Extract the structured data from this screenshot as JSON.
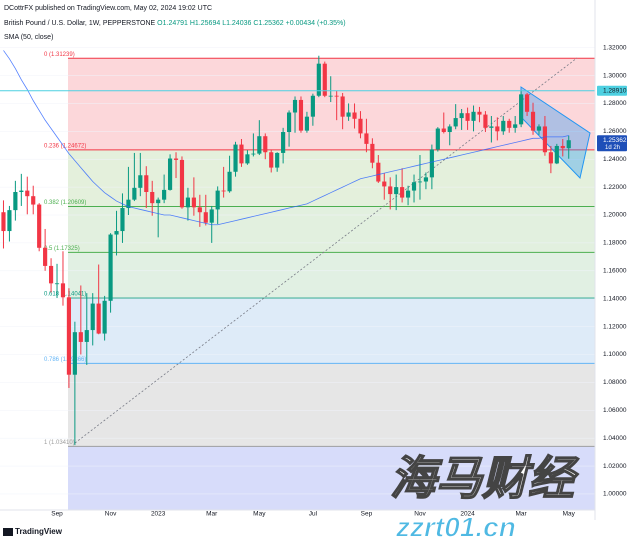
{
  "header": {
    "publisher": "DCottrFX published on TradingView.com, May 02, 2024 19:02 UTC",
    "symbol": "British Pound / U.S. Dollar, 1W, PEPPERSTONE",
    "open": "O1.24791",
    "high": "H1.25694",
    "low": "L1.24036",
    "close": "C1.25362",
    "change": "+0.00434 (+0.35%)",
    "indicator": "SMA (50, close)"
  },
  "chart_data": {
    "type": "candlestick",
    "categories": [
      null,
      null,
      null,
      null,
      null,
      null,
      null,
      null,
      null,
      "Sep",
      null,
      null,
      null,
      null,
      null,
      null,
      null,
      null,
      "Nov",
      null,
      null,
      null,
      null,
      null,
      null,
      null,
      "2023",
      null,
      null,
      null,
      null,
      null,
      null,
      null,
      null,
      "Mar",
      null,
      null,
      null,
      null,
      null,
      null,
      null,
      "May",
      null,
      null,
      null,
      null,
      null,
      null,
      null,
      null,
      "Jul",
      null,
      null,
      null,
      null,
      null,
      null,
      null,
      null,
      "Sep",
      null,
      null,
      null,
      null,
      null,
      null,
      null,
      null,
      "Nov",
      null,
      null,
      null,
      null,
      null,
      null,
      null,
      "2024",
      null,
      null,
      null,
      null,
      null,
      null,
      null,
      null,
      "Mar",
      null,
      null,
      null,
      null,
      null,
      null,
      null,
      "May"
    ],
    "open": [
      1.202,
      1.1885,
      1.2035,
      1.2165,
      1.2175,
      1.2135,
      1.2075,
      1.1765,
      1.1635,
      1.151,
      1.151,
      1.141,
      1.0855,
      1.116,
      1.109,
      1.1175,
      1.1365,
      1.115,
      1.1385,
      1.186,
      1.1885,
      1.205,
      1.211,
      1.2195,
      1.2285,
      1.2165,
      1.2085,
      1.211,
      1.218,
      1.2405,
      1.2395,
      1.2055,
      1.2125,
      1.2055,
      1.202,
      1.1945,
      1.204,
      1.2175,
      1.217,
      1.231,
      1.2505,
      1.237,
      1.2435,
      1.244,
      1.2565,
      1.245,
      1.234,
      1.2445,
      1.2595,
      1.2735,
      1.2825,
      1.2605,
      1.2705,
      1.2855,
      1.3085,
      1.2855,
      1.2855,
      1.285,
      1.2705,
      1.2735,
      1.269,
      1.2585,
      1.251,
      1.2375,
      1.224,
      1.2205,
      1.215,
      1.22,
      1.2125,
      1.2175,
      1.2235,
      1.224,
      1.227,
      1.247,
      1.262,
      1.2595,
      1.2635,
      1.2695,
      1.273,
      1.2675,
      1.274,
      1.272,
      1.2625,
      1.2635,
      1.26,
      1.2675,
      1.2625,
      1.265,
      1.2865,
      1.274,
      1.2605,
      1.2635,
      1.245,
      1.237,
      1.2495,
      1.24791
    ],
    "high": [
      1.2105,
      1.2065,
      1.2245,
      1.2295,
      1.2275,
      1.221,
      1.2085,
      1.19,
      1.169,
      1.165,
      1.174,
      1.1475,
      1.1235,
      1.1495,
      1.144,
      1.144,
      1.1645,
      1.142,
      1.187,
      1.203,
      1.2155,
      1.2345,
      1.2445,
      1.2445,
      1.235,
      1.2245,
      1.2125,
      1.229,
      1.2435,
      1.245,
      1.242,
      1.2195,
      1.227,
      1.2145,
      1.2145,
      1.2065,
      1.2205,
      1.2345,
      1.2425,
      1.2525,
      1.2545,
      1.2465,
      1.2585,
      1.268,
      1.2585,
      1.247,
      1.245,
      1.2625,
      1.275,
      1.285,
      1.285,
      1.274,
      1.287,
      1.3142,
      1.31,
      1.2995,
      1.289,
      1.2875,
      1.28,
      1.28,
      1.2745,
      1.269,
      1.255,
      1.243,
      1.23,
      1.227,
      1.229,
      1.2335,
      1.221,
      1.229,
      1.243,
      1.2305,
      1.2505,
      1.263,
      1.2735,
      1.265,
      1.2795,
      1.276,
      1.277,
      1.2785,
      1.2775,
      1.2745,
      1.271,
      1.27,
      1.271,
      1.269,
      1.271,
      1.2895,
      1.2875,
      1.2805,
      1.265,
      1.271,
      1.2495,
      1.251,
      1.2545,
      1.25694
    ],
    "low": [
      1.176,
      1.181,
      1.196,
      1.2065,
      1.2005,
      1.2005,
      1.174,
      1.16,
      1.1445,
      1.1405,
      1.135,
      1.076,
      1.035,
      1.1,
      1.0925,
      1.1065,
      1.1145,
      1.11,
      1.13,
      1.171,
      1.18,
      1.2,
      1.21,
      1.2135,
      1.205,
      1.1995,
      1.184,
      1.2085,
      1.2175,
      1.2265,
      1.2045,
      1.196,
      1.1995,
      1.1915,
      1.1925,
      1.18,
      1.1935,
      1.2125,
      1.216,
      1.2275,
      1.2345,
      1.236,
      1.242,
      1.243,
      1.24,
      1.2305,
      1.231,
      1.237,
      1.249,
      1.259,
      1.259,
      1.259,
      1.264,
      1.2845,
      1.2845,
      1.281,
      1.268,
      1.2615,
      1.2675,
      1.262,
      1.255,
      1.245,
      1.2335,
      1.223,
      1.211,
      1.204,
      1.2035,
      1.209,
      1.207,
      1.209,
      1.211,
      1.2185,
      1.2185,
      1.2455,
      1.2585,
      1.25,
      1.2615,
      1.261,
      1.261,
      1.26,
      1.2665,
      1.2595,
      1.252,
      1.2535,
      1.2575,
      1.259,
      1.259,
      1.263,
      1.271,
      1.2575,
      1.2575,
      1.2425,
      1.23,
      1.2365,
      1.242,
      1.24036
    ],
    "close": [
      1.1885,
      1.2035,
      1.2165,
      1.2175,
      1.2135,
      1.2075,
      1.1765,
      1.1635,
      1.151,
      1.151,
      1.141,
      1.0855,
      1.116,
      1.109,
      1.1175,
      1.1365,
      1.115,
      1.1385,
      1.186,
      1.1885,
      1.205,
      1.211,
      1.2195,
      1.2285,
      1.2165,
      1.2085,
      1.211,
      1.218,
      1.2405,
      1.2395,
      1.2055,
      1.2125,
      1.2055,
      1.202,
      1.1945,
      1.204,
      1.2175,
      1.217,
      1.231,
      1.2505,
      1.237,
      1.2435,
      1.244,
      1.2565,
      1.245,
      1.234,
      1.2445,
      1.2595,
      1.2735,
      1.2825,
      1.2605,
      1.2705,
      1.2855,
      1.3085,
      1.2855,
      1.2855,
      1.285,
      1.2705,
      1.2735,
      1.269,
      1.2585,
      1.251,
      1.2375,
      1.224,
      1.2205,
      1.215,
      1.22,
      1.2125,
      1.2175,
      1.2235,
      1.224,
      1.227,
      1.247,
      1.262,
      1.2595,
      1.2635,
      1.2695,
      1.273,
      1.2675,
      1.274,
      1.272,
      1.2625,
      1.2635,
      1.26,
      1.2675,
      1.2625,
      1.265,
      1.2865,
      1.274,
      1.2605,
      1.2635,
      1.245,
      1.237,
      1.2495,
      1.24791,
      1.25362
    ],
    "up_color": "#089981",
    "down_color": "#f23645",
    "sma": {
      "color": "#2962ff",
      "values": [
        1.318,
        1.312,
        1.305,
        1.297,
        1.29,
        1.282,
        1.275,
        1.268,
        1.262,
        1.256,
        1.25,
        1.244,
        1.239,
        1.234,
        1.229,
        1.224,
        1.22,
        1.216,
        1.213,
        1.21,
        1.208,
        1.206,
        1.205,
        1.204,
        1.203,
        1.202,
        1.201,
        1.2,
        1.2,
        1.199,
        1.198,
        1.197,
        1.196,
        1.195,
        1.194,
        1.193,
        1.193,
        1.194,
        1.195,
        1.196,
        1.197,
        1.198,
        1.199,
        1.2,
        1.201,
        1.202,
        1.203,
        1.204,
        1.205,
        1.206,
        1.207,
        1.208,
        1.21,
        1.212,
        1.214,
        1.216,
        1.218,
        1.22,
        1.222,
        1.224,
        1.226,
        1.227,
        1.228,
        1.229,
        1.23,
        1.231,
        1.232,
        1.233,
        1.234,
        1.235,
        1.236,
        1.237,
        1.238,
        1.239,
        1.24,
        1.241,
        1.242,
        1.243,
        1.244,
        1.245,
        1.246,
        1.247,
        1.248,
        1.249,
        1.25,
        1.251,
        1.252,
        1.253,
        1.254,
        1.255,
        1.255,
        1.256,
        1.256,
        1.256,
        1.256,
        1.257
      ]
    },
    "ylim": [
      0.9885,
      1.3434
    ],
    "yticks": [
      {
        "value": 1.0,
        "label": "1.00000"
      },
      {
        "value": 1.02,
        "label": "1.02000"
      },
      {
        "value": 1.04,
        "label": "1.04000"
      },
      {
        "value": 1.06,
        "label": "1.06000"
      },
      {
        "value": 1.08,
        "label": "1.08000"
      },
      {
        "value": 1.1,
        "label": "1.10000"
      },
      {
        "value": 1.12,
        "label": "1.12000"
      },
      {
        "value": 1.14,
        "label": "1.14000"
      },
      {
        "value": 1.16,
        "label": "1.16000"
      },
      {
        "value": 1.18,
        "label": "1.18000"
      },
      {
        "value": 1.2,
        "label": "1.20000"
      },
      {
        "value": 1.22,
        "label": "1.22000"
      },
      {
        "value": 1.24,
        "label": "1.24000"
      },
      {
        "value": 1.26,
        "label": "1.26000"
      },
      {
        "value": 1.28,
        "label": "1.28000"
      },
      {
        "value": 1.3,
        "label": "1.30000"
      },
      {
        "value": 1.32,
        "label": "1.32000"
      }
    ],
    "fib_levels": [
      {
        "value": 1.31239,
        "label": "0 (1.31239)",
        "color": "#f23645",
        "fill": "#fcd7da"
      },
      {
        "value": 1.24672,
        "label": "0.236 (1.24672)",
        "color": "#f23645",
        "fill": "#e4f0dc"
      },
      {
        "value": 1.20609,
        "label": "0.382 (1.20609)",
        "color": "#4caf50",
        "fill": "#e2f0df"
      },
      {
        "value": 1.17325,
        "label": "0.5 (1.17325)",
        "color": "#4caf50",
        "fill": "#e1f0e3"
      },
      {
        "value": 1.14041,
        "label": "0.618 (1.14041)",
        "color": "#089981",
        "fill": "#deebf8"
      },
      {
        "value": 1.09366,
        "label": "0.786 (1.09366)",
        "color": "#64b5f6",
        "fill": "#e6e6e6"
      },
      {
        "value": 1.0341,
        "label": "1 (1.03410)",
        "color": "#9e9e9e",
        "fill": "#d7dcfa"
      }
    ],
    "price_tags": [
      {
        "value": 1.2891,
        "label": "1.28910",
        "color": "#4dd0e1",
        "text_color": "#131722"
      },
      {
        "value": 1.25362,
        "label": "1.25362",
        "color": "#1e4fb8",
        "text_color": "#ffffff",
        "sub": "1d 2h"
      }
    ]
  },
  "watermark": {
    "title": "海马财经",
    "site": "zzrt01.cn"
  },
  "footer": {
    "logo": "TradingView"
  }
}
